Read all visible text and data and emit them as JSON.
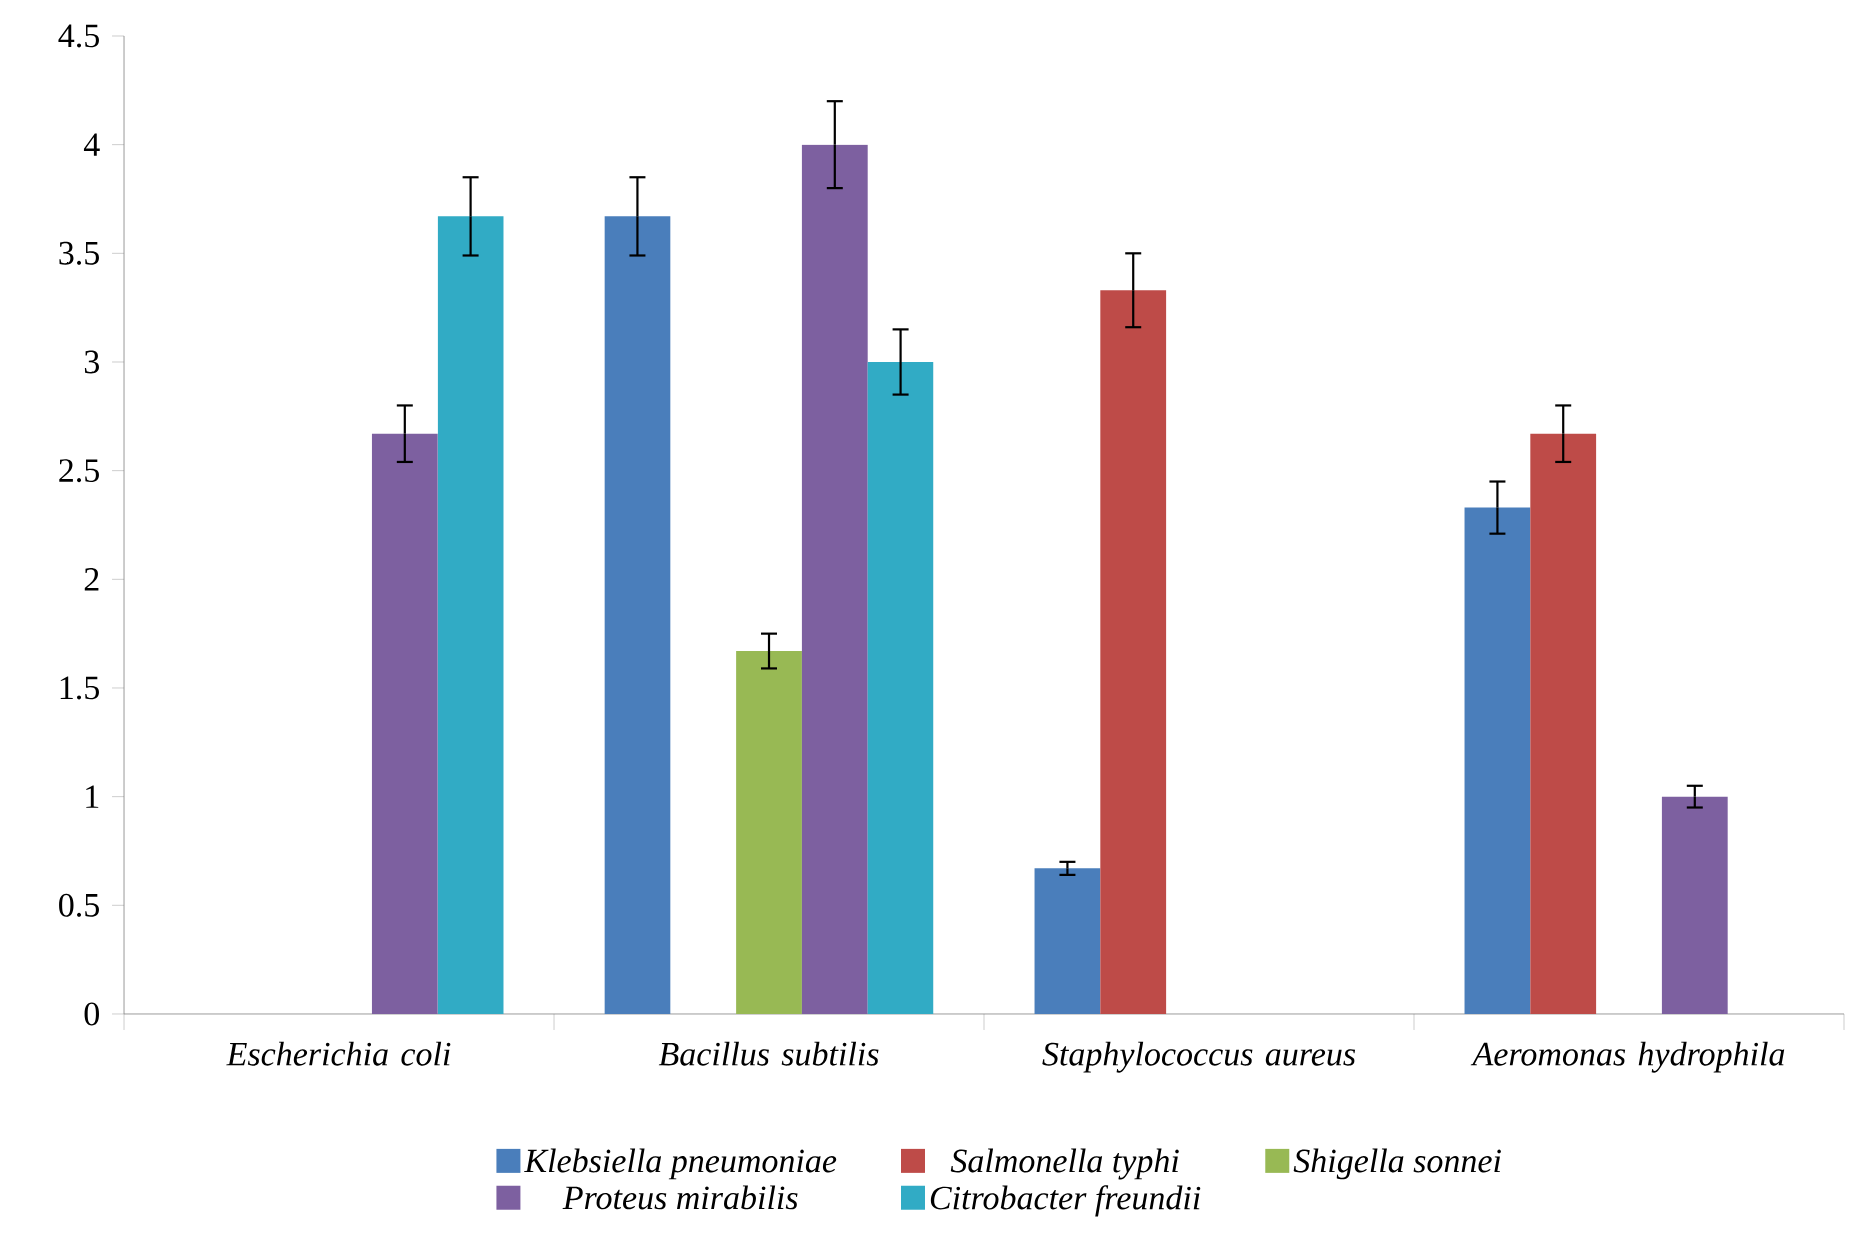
{
  "chart_data": {
    "type": "bar",
    "categories": [
      "Escherichia coli",
      "Bacillus subtilis",
      "Staphylococcus aureus",
      "Aeromonas hydrophila"
    ],
    "series": [
      {
        "name": "Klebsiella pneumoniae",
        "color": "#4a7ebb",
        "values": [
          null,
          3.67,
          0.67,
          2.33
        ],
        "errors": [
          null,
          0.18,
          0.03,
          0.12
        ]
      },
      {
        "name": "Salmonella typhi",
        "color": "#be4b48",
        "values": [
          null,
          null,
          3.33,
          2.67
        ],
        "errors": [
          null,
          null,
          0.17,
          0.13
        ]
      },
      {
        "name": "Shigella sonnei",
        "color": "#98b954",
        "values": [
          null,
          1.67,
          null,
          null
        ],
        "errors": [
          null,
          0.08,
          null,
          null
        ]
      },
      {
        "name": "Proteus mirabilis",
        "color": "#7d60a0",
        "values": [
          2.67,
          4.0,
          null,
          1.0
        ],
        "errors": [
          0.13,
          0.2,
          null,
          0.05
        ]
      },
      {
        "name": "Citrobacter freundii",
        "color": "#31abc5",
        "values": [
          3.67,
          3.0,
          null,
          null
        ],
        "errors": [
          0.18,
          0.15,
          null,
          null
        ]
      }
    ],
    "ylim": [
      0,
      4.5
    ],
    "yticks": [
      0,
      0.5,
      1,
      1.5,
      2,
      2.5,
      3,
      3.5,
      4,
      4.5
    ],
    "grid": false,
    "legend": "bottom"
  }
}
